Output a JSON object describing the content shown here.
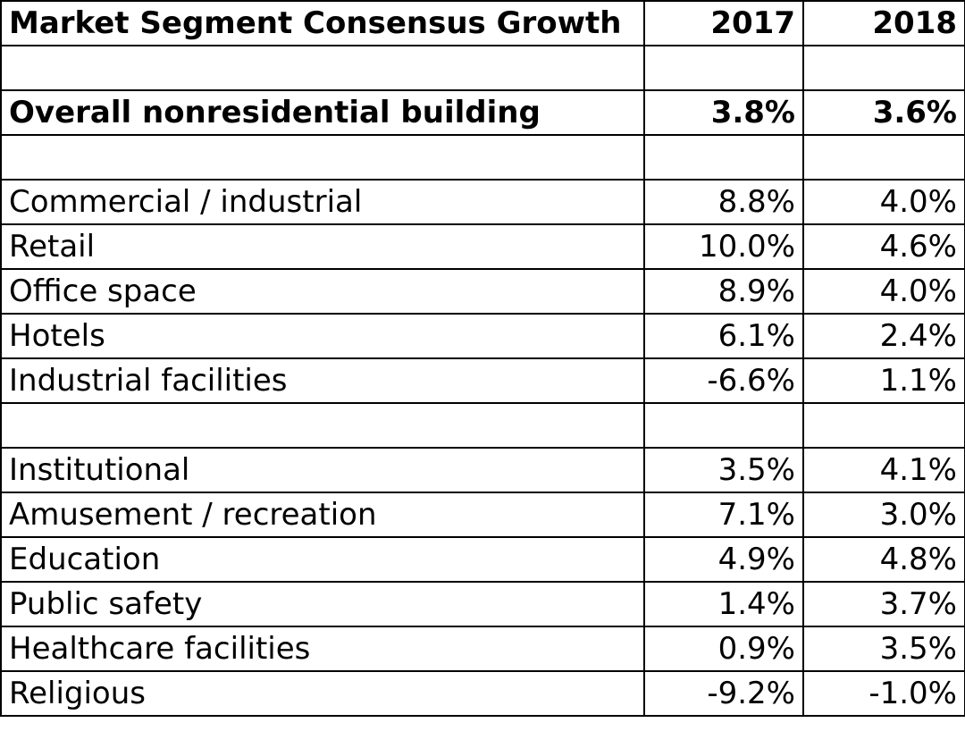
{
  "chart_data": {
    "type": "table",
    "columns": [
      "Market Segment Consensus Growth",
      "2017",
      "2018"
    ],
    "rows": [
      {
        "segment": "",
        "y2017": "",
        "y2018": "",
        "bold": false
      },
      {
        "segment": "Overall nonresidential building",
        "y2017": "3.8%",
        "y2018": "3.6%",
        "bold": true
      },
      {
        "segment": "",
        "y2017": "",
        "y2018": "",
        "bold": false
      },
      {
        "segment": "Commercial / industrial",
        "y2017": "8.8%",
        "y2018": "4.0%",
        "bold": false
      },
      {
        "segment": "Retail",
        "y2017": "10.0%",
        "y2018": "4.6%",
        "bold": false
      },
      {
        "segment": "Office space",
        "y2017": "8.9%",
        "y2018": "4.0%",
        "bold": false
      },
      {
        "segment": "Hotels",
        "y2017": "6.1%",
        "y2018": "2.4%",
        "bold": false
      },
      {
        "segment": "Industrial facilities",
        "y2017": "-6.6%",
        "y2018": "1.1%",
        "bold": false
      },
      {
        "segment": "",
        "y2017": "",
        "y2018": "",
        "bold": false
      },
      {
        "segment": "Institutional",
        "y2017": "3.5%",
        "y2018": "4.1%",
        "bold": false
      },
      {
        "segment": "Amusement / recreation",
        "y2017": "7.1%",
        "y2018": "3.0%",
        "bold": false
      },
      {
        "segment": "Education",
        "y2017": "4.9%",
        "y2018": "4.8%",
        "bold": false
      },
      {
        "segment": "Public safety",
        "y2017": "1.4%",
        "y2018": "3.7%",
        "bold": false
      },
      {
        "segment": "Healthcare facilities",
        "y2017": "0.9%",
        "y2018": "3.5%",
        "bold": false
      },
      {
        "segment": "Religious",
        "y2017": "-9.2%",
        "y2018": "-1.0%",
        "bold": false
      }
    ]
  }
}
